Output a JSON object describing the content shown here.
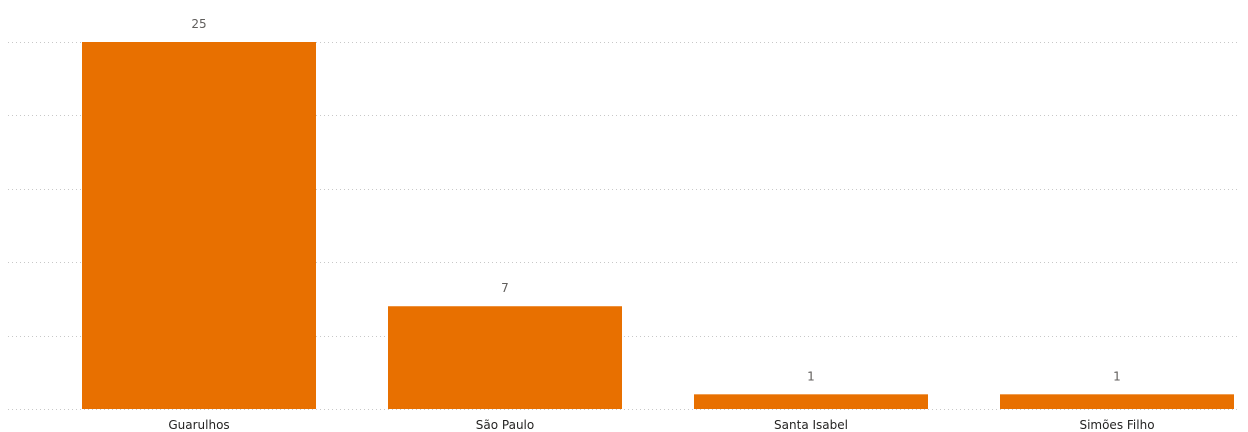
{
  "chart_data": {
    "type": "bar",
    "categories": [
      "Guarulhos",
      "São Paulo",
      "Santa Isabel",
      "Simões Filho"
    ],
    "values": [
      25,
      7,
      1,
      1
    ],
    "title": "",
    "xlabel": "",
    "ylabel": "",
    "ylim": [
      0,
      25
    ],
    "grid": true,
    "data_labels": true,
    "legend": "none",
    "colors": {
      "bar": "#E87000"
    }
  }
}
